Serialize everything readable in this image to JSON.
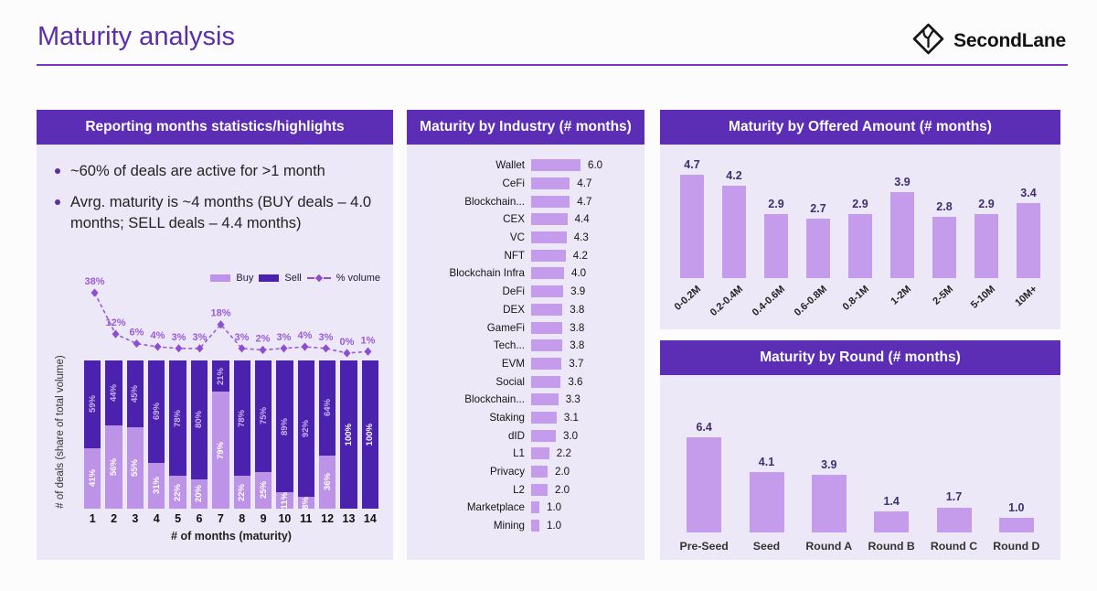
{
  "page": {
    "title": "Maturity analysis",
    "brand": "SecondLane"
  },
  "colors": {
    "header_bg": "#5b2eb5",
    "panel_bg": "#ece8f7",
    "buy_light": "#bd93e8",
    "bar_light": "#c59ceb",
    "sell_dark": "#4a22ad",
    "volume_line": "#9a5cd6",
    "volume_marker": "#8d4fd0",
    "value_label": "#3e2f6e",
    "title_accent": "#5c2ea8"
  },
  "highlights": {
    "header": "Reporting months statistics/highlights",
    "bullets": [
      "~60% of deals are active for >1 month",
      "Avrg. maturity is ~4 months (BUY deals – 4.0 months; SELL deals – 4.4 months)"
    ]
  },
  "chart_data": [
    {
      "id": "deal-mix-by-maturity",
      "type": "bar",
      "stacked": true,
      "title": "",
      "xlabel": "# of months (maturity)",
      "ylabel": "# of deals (share of total volume)",
      "categories": [
        1,
        2,
        3,
        4,
        5,
        6,
        7,
        8,
        9,
        10,
        11,
        12,
        13,
        14
      ],
      "series": [
        {
          "name": "Buy",
          "type": "bar",
          "values": [
            41,
            56,
            55,
            31,
            22,
            20,
            79,
            22,
            25,
            11,
            8,
            36,
            0,
            0
          ]
        },
        {
          "name": "Sell",
          "type": "bar",
          "values": [
            59,
            44,
            45,
            69,
            78,
            80,
            21,
            78,
            75,
            89,
            92,
            64,
            100,
            100
          ]
        },
        {
          "name": "% volume",
          "type": "line",
          "values": [
            38,
            12,
            6,
            4,
            3,
            3,
            18,
            3,
            2,
            3,
            4,
            3,
            0,
            1
          ]
        }
      ],
      "unit": "%",
      "ylim": [
        0,
        100
      ],
      "legend_position": "top-right",
      "grid": false
    },
    {
      "id": "maturity-by-industry",
      "type": "bar",
      "orientation": "horizontal",
      "title": "Maturity by Industry (# months)",
      "categories": [
        "Wallet",
        "CeFi",
        "Blockchain...",
        "CEX",
        "VC",
        "NFT",
        "Blockchain Infra",
        "DeFi",
        "DEX",
        "GameFi",
        "Tech...",
        "EVM",
        "Social",
        "Blockchain...",
        "Staking",
        "dID",
        "L1",
        "Privacy",
        "L2",
        "Marketplace",
        "Mining"
      ],
      "values": [
        6.0,
        4.7,
        4.7,
        4.4,
        4.3,
        4.2,
        4.0,
        3.9,
        3.8,
        3.8,
        3.8,
        3.7,
        3.6,
        3.3,
        3.1,
        3.0,
        2.2,
        2.0,
        2.0,
        1.0,
        1.0
      ],
      "xlim": [
        0,
        6
      ],
      "grid": false
    },
    {
      "id": "maturity-by-offered-amount",
      "type": "bar",
      "title": "Maturity by Offered Amount (# months)",
      "categories": [
        "0-0.2M",
        "0.2-0.4M",
        "0.4-0.6M",
        "0.6-0.8M",
        "0.8-1M",
        "1-2M",
        "2-5M",
        "5-10M",
        "10M+"
      ],
      "values": [
        4.7,
        4.2,
        2.9,
        2.7,
        2.9,
        3.9,
        2.8,
        2.9,
        3.4
      ],
      "ylim": [
        0,
        5
      ],
      "grid": false
    },
    {
      "id": "maturity-by-round",
      "type": "bar",
      "title": "Maturity by Round (# months)",
      "categories": [
        "Pre-Seed",
        "Seed",
        "Round A",
        "Round B",
        "Round C",
        "Round D"
      ],
      "values": [
        6.4,
        4.1,
        3.9,
        1.4,
        1.7,
        1.0
      ],
      "ylim": [
        0,
        7
      ],
      "grid": false
    }
  ]
}
